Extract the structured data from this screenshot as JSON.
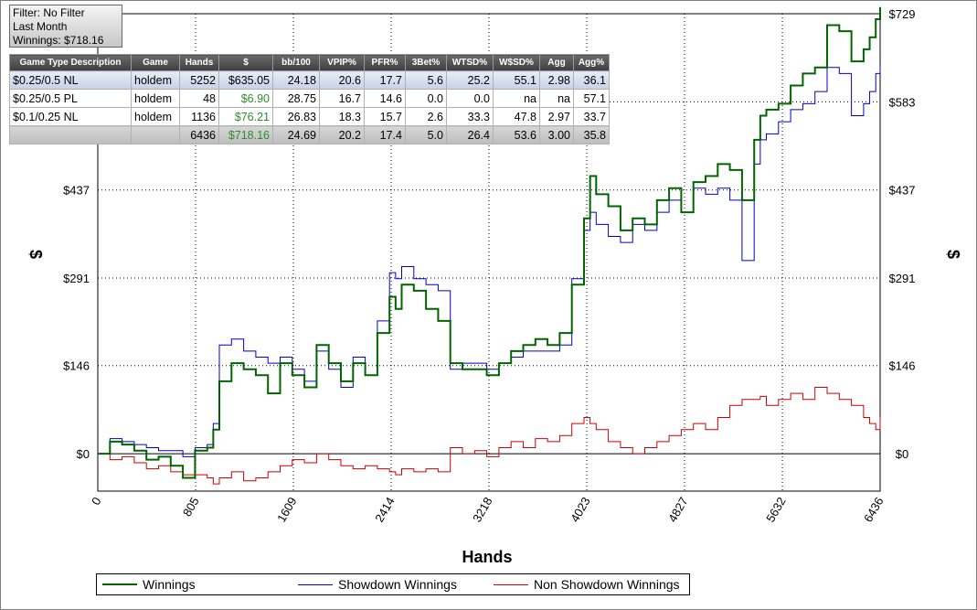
{
  "filter_box": {
    "line1": "Filter: No Filter",
    "line2": "Last Month",
    "line3": "Winnings: $718.16"
  },
  "stats_table": {
    "headers": [
      "Game Type Description",
      "Game",
      "Hands",
      "$",
      "bb/100",
      "VPIP%",
      "PFR%",
      "3Bet%",
      "WTSD%",
      "W$SD%",
      "Agg",
      "Agg%"
    ],
    "rows": [
      [
        "$0.25/0.5 NL",
        "holdem",
        "5252",
        "$635.05",
        "24.18",
        "20.6",
        "17.7",
        "5.6",
        "25.2",
        "55.1",
        "2.98",
        "36.1"
      ],
      [
        "$0.25/0.5 PL",
        "holdem",
        "48",
        "$6.90",
        "28.75",
        "16.7",
        "14.6",
        "0.0",
        "0.0",
        "na",
        "na",
        "57.1"
      ],
      [
        "$0.1/0.25 NL",
        "holdem",
        "1136",
        "$76.21",
        "26.83",
        "18.3",
        "15.7",
        "2.6",
        "33.3",
        "47.8",
        "2.97",
        "33.7"
      ]
    ],
    "total": [
      "",
      "",
      "6436",
      "$718.16",
      "24.69",
      "20.2",
      "17.4",
      "5.0",
      "26.4",
      "53.6",
      "3.00",
      "35.8"
    ]
  },
  "colors": {
    "winnings": "#006400",
    "showdown": "#0000cc",
    "non_showdown": "#cc0000",
    "money_green": "#2e8b2e"
  },
  "chart_data": {
    "type": "line",
    "xlabel": "Hands",
    "ylabel": "$",
    "xlim": [
      0,
      6436
    ],
    "ylim": [
      -62,
      729
    ],
    "x_ticks": [
      "0",
      "805",
      "1609",
      "2414",
      "3218",
      "4023",
      "4827",
      "5632",
      "6436"
    ],
    "y_ticks": [
      "$0",
      "$146",
      "$291",
      "$437",
      "$583",
      "$729"
    ],
    "y_tick_values": [
      0,
      146,
      291,
      437,
      583,
      729
    ],
    "grid": true,
    "legend_position": "bottom",
    "x": [
      0,
      100,
      200,
      300,
      400,
      500,
      600,
      700,
      800,
      900,
      950,
      1000,
      1100,
      1200,
      1300,
      1400,
      1500,
      1600,
      1700,
      1800,
      1900,
      2000,
      2100,
      2200,
      2300,
      2400,
      2450,
      2500,
      2600,
      2700,
      2800,
      2900,
      3000,
      3100,
      3200,
      3300,
      3400,
      3500,
      3600,
      3700,
      3800,
      3900,
      4000,
      4050,
      4100,
      4200,
      4300,
      4400,
      4500,
      4600,
      4700,
      4800,
      4900,
      5000,
      5100,
      5200,
      5300,
      5400,
      5450,
      5500,
      5600,
      5700,
      5800,
      5900,
      6000,
      6100,
      6200,
      6300,
      6350,
      6400,
      6436
    ],
    "series": [
      {
        "name": "Winnings",
        "values": [
          0,
          20,
          15,
          5,
          -10,
          -5,
          -20,
          -40,
          5,
          10,
          40,
          120,
          150,
          140,
          130,
          100,
          150,
          130,
          110,
          180,
          150,
          120,
          150,
          130,
          200,
          260,
          240,
          280,
          270,
          240,
          220,
          150,
          140,
          140,
          130,
          150,
          170,
          180,
          190,
          180,
          200,
          280,
          390,
          460,
          430,
          410,
          370,
          390,
          380,
          420,
          440,
          400,
          450,
          460,
          480,
          470,
          420,
          520,
          560,
          570,
          580,
          610,
          630,
          640,
          710,
          700,
          650,
          670,
          690,
          720,
          740
        ]
      },
      {
        "name": "Showdown Winnings",
        "values": [
          0,
          25,
          20,
          15,
          10,
          5,
          5,
          -5,
          10,
          15,
          50,
          180,
          190,
          170,
          160,
          150,
          160,
          140,
          120,
          170,
          140,
          110,
          160,
          130,
          220,
          300,
          290,
          310,
          290,
          280,
          270,
          140,
          150,
          150,
          140,
          150,
          160,
          170,
          170,
          170,
          180,
          290,
          370,
          400,
          380,
          360,
          350,
          380,
          370,
          400,
          420,
          400,
          440,
          430,
          440,
          420,
          320,
          480,
          520,
          530,
          550,
          570,
          580,
          600,
          640,
          630,
          560,
          580,
          600,
          630,
          640
        ]
      },
      {
        "name": "Non Showdown Winnings",
        "values": [
          0,
          -10,
          -5,
          -15,
          -25,
          -20,
          -30,
          -35,
          -35,
          -40,
          -50,
          -40,
          -30,
          -45,
          -40,
          -30,
          -20,
          -10,
          -15,
          0,
          -10,
          -20,
          -25,
          -20,
          -25,
          -30,
          -35,
          -25,
          -30,
          -25,
          -30,
          10,
          0,
          5,
          -5,
          10,
          20,
          10,
          25,
          20,
          30,
          50,
          60,
          50,
          40,
          20,
          10,
          0,
          10,
          20,
          30,
          40,
          50,
          40,
          60,
          80,
          90,
          90,
          95,
          80,
          90,
          100,
          90,
          110,
          100,
          90,
          80,
          60,
          50,
          40,
          60
        ]
      }
    ]
  }
}
